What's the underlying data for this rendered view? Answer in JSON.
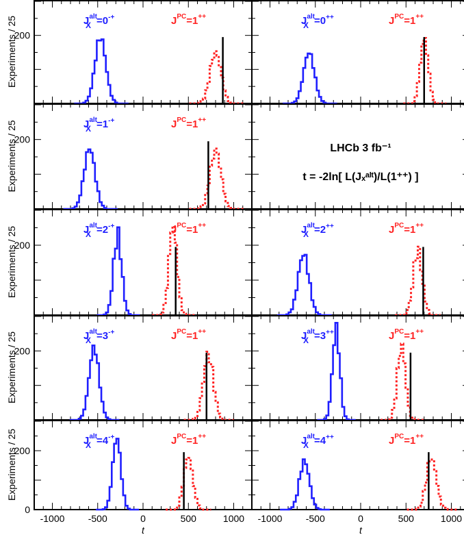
{
  "figure": {
    "ylabel": "Experiments / 25",
    "xlabel": "t",
    "x_ticks": [
      "-1000",
      "-500",
      "0",
      "500",
      "1000"
    ],
    "y_tick_label": "200",
    "y_axis_origin_label": "0",
    "experiment_label": "LHCb 3 fb⁻¹",
    "statistic_formula": "t = -2ln[ L(Jₓᵃˡᵗ)/L(1⁺⁺) ]",
    "colors": {
      "alt": "#1f1fff",
      "nominal": "#ff2222",
      "observed": "#000000"
    }
  },
  "chart_data": [
    {
      "type": "histogram",
      "panel": "0-+",
      "alt_label": "J_X^alt=0^{-+}",
      "nominal_label": "J^{PC}=1^{++}",
      "xlim": [
        -1200,
        1200
      ],
      "ylim": [
        0,
        300
      ],
      "series": [
        {
          "name": "J_X^alt=0^{-+}",
          "center": -470,
          "sigma": 60,
          "peak": 195
        },
        {
          "name": "J^{PC}=1^{++}",
          "center": 800,
          "sigma": 60,
          "peak": 150
        }
      ],
      "observed_t": 880
    },
    {
      "type": "histogram",
      "panel": "0++",
      "alt_label": "J_X^alt=0^{++}",
      "nominal_label": "J^{PC}=1^{++}",
      "xlim": [
        -1200,
        1200
      ],
      "ylim": [
        0,
        300
      ],
      "series": [
        {
          "name": "J_X^alt=0^{++}",
          "center": -570,
          "sigma": 60,
          "peak": 150
        },
        {
          "name": "J^{PC}=1^{++}",
          "center": 700,
          "sigma": 45,
          "peak": 190
        }
      ],
      "observed_t": 700
    },
    {
      "type": "histogram",
      "panel": "1-+",
      "alt_label": "J_X^alt=1^{-+}",
      "nominal_label": "J^{PC}=1^{++}",
      "xlim": [
        -1200,
        1200
      ],
      "ylim": [
        0,
        300
      ],
      "series": [
        {
          "name": "J_X^alt=1^{-+}",
          "center": -590,
          "sigma": 60,
          "peak": 175
        },
        {
          "name": "J^{PC}=1^{++}",
          "center": 800,
          "sigma": 60,
          "peak": 170
        }
      ],
      "observed_t": 720
    },
    {
      "type": "panel-text",
      "panel": "legend"
    },
    {
      "type": "histogram",
      "panel": "2-+",
      "alt_label": "J_X^alt=2^{-+}",
      "nominal_label": "J^{PC}=1^{++}",
      "xlim": [
        -1200,
        1200
      ],
      "ylim": [
        0,
        300
      ],
      "series": [
        {
          "name": "J_X^alt=2^{-+}",
          "center": -280,
          "sigma": 45,
          "peak": 230
        },
        {
          "name": "J^{PC}=1^{++}",
          "center": 330,
          "sigma": 45,
          "peak": 260
        }
      ],
      "observed_t": 360
    },
    {
      "type": "histogram",
      "panel": "2++",
      "alt_label": "J_X^alt=2^{++}",
      "nominal_label": "J^{PC}=1^{++}",
      "xlim": [
        -1200,
        1200
      ],
      "ylim": [
        0,
        300
      ],
      "series": [
        {
          "name": "J_X^alt=2^{++}",
          "center": -630,
          "sigma": 60,
          "peak": 175
        },
        {
          "name": "J^{PC}=1^{++}",
          "center": 630,
          "sigma": 50,
          "peak": 185
        }
      ],
      "observed_t": 690
    },
    {
      "type": "histogram",
      "panel": "3-+",
      "alt_label": "J_X^alt=3^{-+}",
      "nominal_label": "J^{PC}=1^{++}",
      "xlim": [
        -1200,
        1200
      ],
      "ylim": [
        0,
        300
      ],
      "series": [
        {
          "name": "J_X^alt=3^{-+}",
          "center": -540,
          "sigma": 55,
          "peak": 210
        },
        {
          "name": "J^{PC}=1^{++}",
          "center": 720,
          "sigma": 55,
          "peak": 190
        }
      ],
      "observed_t": 700
    },
    {
      "type": "histogram",
      "panel": "3++",
      "alt_label": "J_X^alt=3^{++}",
      "nominal_label": "J^{PC}=1^{++}",
      "xlim": [
        -1200,
        1200
      ],
      "ylim": [
        0,
        300
      ],
      "series": [
        {
          "name": "J_X^alt=3^{++}",
          "center": -270,
          "sigma": 40,
          "peak": 265
        },
        {
          "name": "J^{PC}=1^{++}",
          "center": 450,
          "sigma": 45,
          "peak": 215
        }
      ],
      "observed_t": 550
    },
    {
      "type": "histogram",
      "panel": "4-+",
      "alt_label": "J_X^alt=4^{-+}",
      "nominal_label": "J^{PC}=1^{++}",
      "xlim": [
        -1200,
        1200
      ],
      "ylim": [
        0,
        300
      ],
      "series": [
        {
          "name": "J_X^alt=4^{-+}",
          "center": -290,
          "sigma": 45,
          "peak": 245
        },
        {
          "name": "J^{PC}=1^{++}",
          "center": 500,
          "sigma": 50,
          "peak": 180
        }
      ],
      "observed_t": 450
    },
    {
      "type": "histogram",
      "panel": "4++",
      "alt_label": "J_X^alt=4^{++}",
      "nominal_label": "J^{PC}=1^{++}",
      "xlim": [
        -1200,
        1200
      ],
      "ylim": [
        0,
        300
      ],
      "series": [
        {
          "name": "J_X^alt=4^{++}",
          "center": -620,
          "sigma": 55,
          "peak": 165
        },
        {
          "name": "J^{PC}=1^{++}",
          "center": 780,
          "sigma": 55,
          "peak": 175
        }
      ],
      "observed_t": 750
    }
  ]
}
